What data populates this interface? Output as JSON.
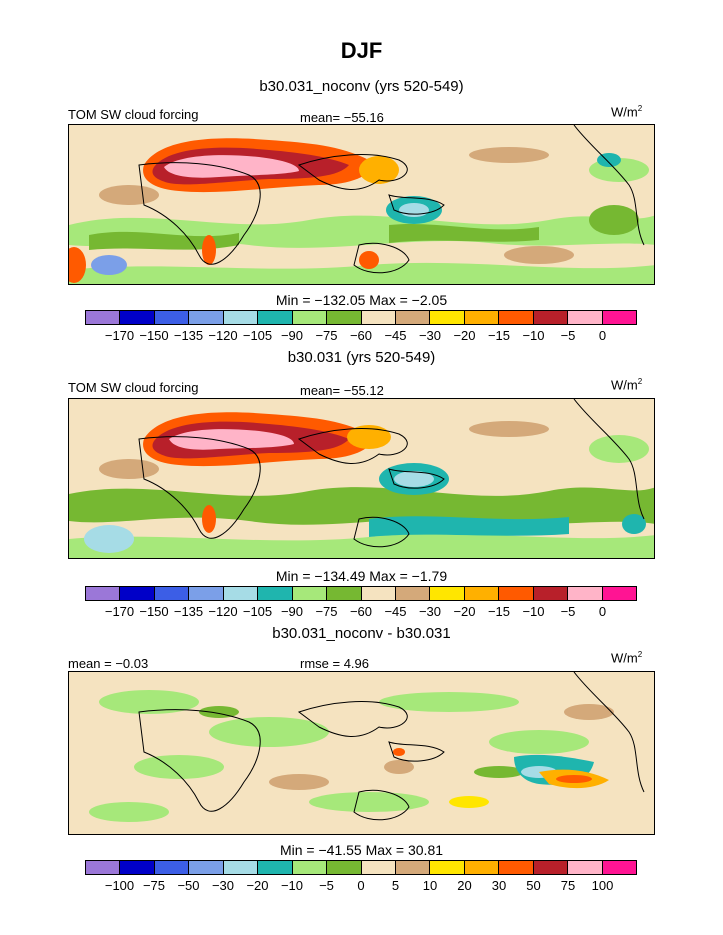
{
  "title": "DJF",
  "panels": [
    {
      "title": "b30.031_noconv (yrs 520-549)",
      "left_label": "TOM SW cloud forcing",
      "center_label": "mean= −55.16",
      "units_base": "W/m",
      "units_exp": "2",
      "stats": "Min = −132.05 Max =  −2.05"
    },
    {
      "title": "b30.031 (yrs 520-549)",
      "left_label": "TOM SW cloud forcing",
      "center_label": "mean= −55.12",
      "units_base": "W/m",
      "units_exp": "2",
      "stats": "Min = −134.49 Max =  −1.79"
    },
    {
      "title": "b30.031_noconv - b30.031",
      "left_label": "mean =  −0.03",
      "center_label": "rmse =  4.96",
      "units_base": "W/m",
      "units_exp": "2",
      "stats": "Min = −41.55 Max =  30.81"
    }
  ],
  "colorbars": {
    "abs": {
      "colors": [
        "#9b77d8",
        "#0000c8",
        "#3c5ee6",
        "#7b9fe8",
        "#a6dce6",
        "#1fb5ae",
        "#a6e87a",
        "#76b832",
        "#f5e3c0",
        "#d4a97a",
        "#ffe600",
        "#ffb000",
        "#ff5a00",
        "#b8202a",
        "#ffb4c8",
        "#ff1493"
      ],
      "labels": [
        "−170",
        "−150",
        "−135",
        "−120",
        "−105",
        "−90",
        "−75",
        "−60",
        "−45",
        "−30",
        "−20",
        "−15",
        "−10",
        "−5",
        "0"
      ]
    },
    "diff": {
      "colors": [
        "#9b77d8",
        "#0000c8",
        "#3c5ee6",
        "#7b9fe8",
        "#a6dce6",
        "#1fb5ae",
        "#a6e87a",
        "#76b832",
        "#f5e3c0",
        "#d4a97a",
        "#ffe600",
        "#ffb000",
        "#ff5a00",
        "#b8202a",
        "#ffb4c8",
        "#ff1493"
      ],
      "labels": [
        "−100",
        "−75",
        "−50",
        "−30",
        "−20",
        "−10",
        "−5",
        "0",
        "5",
        "10",
        "20",
        "30",
        "50",
        "75",
        "100"
      ]
    }
  }
}
